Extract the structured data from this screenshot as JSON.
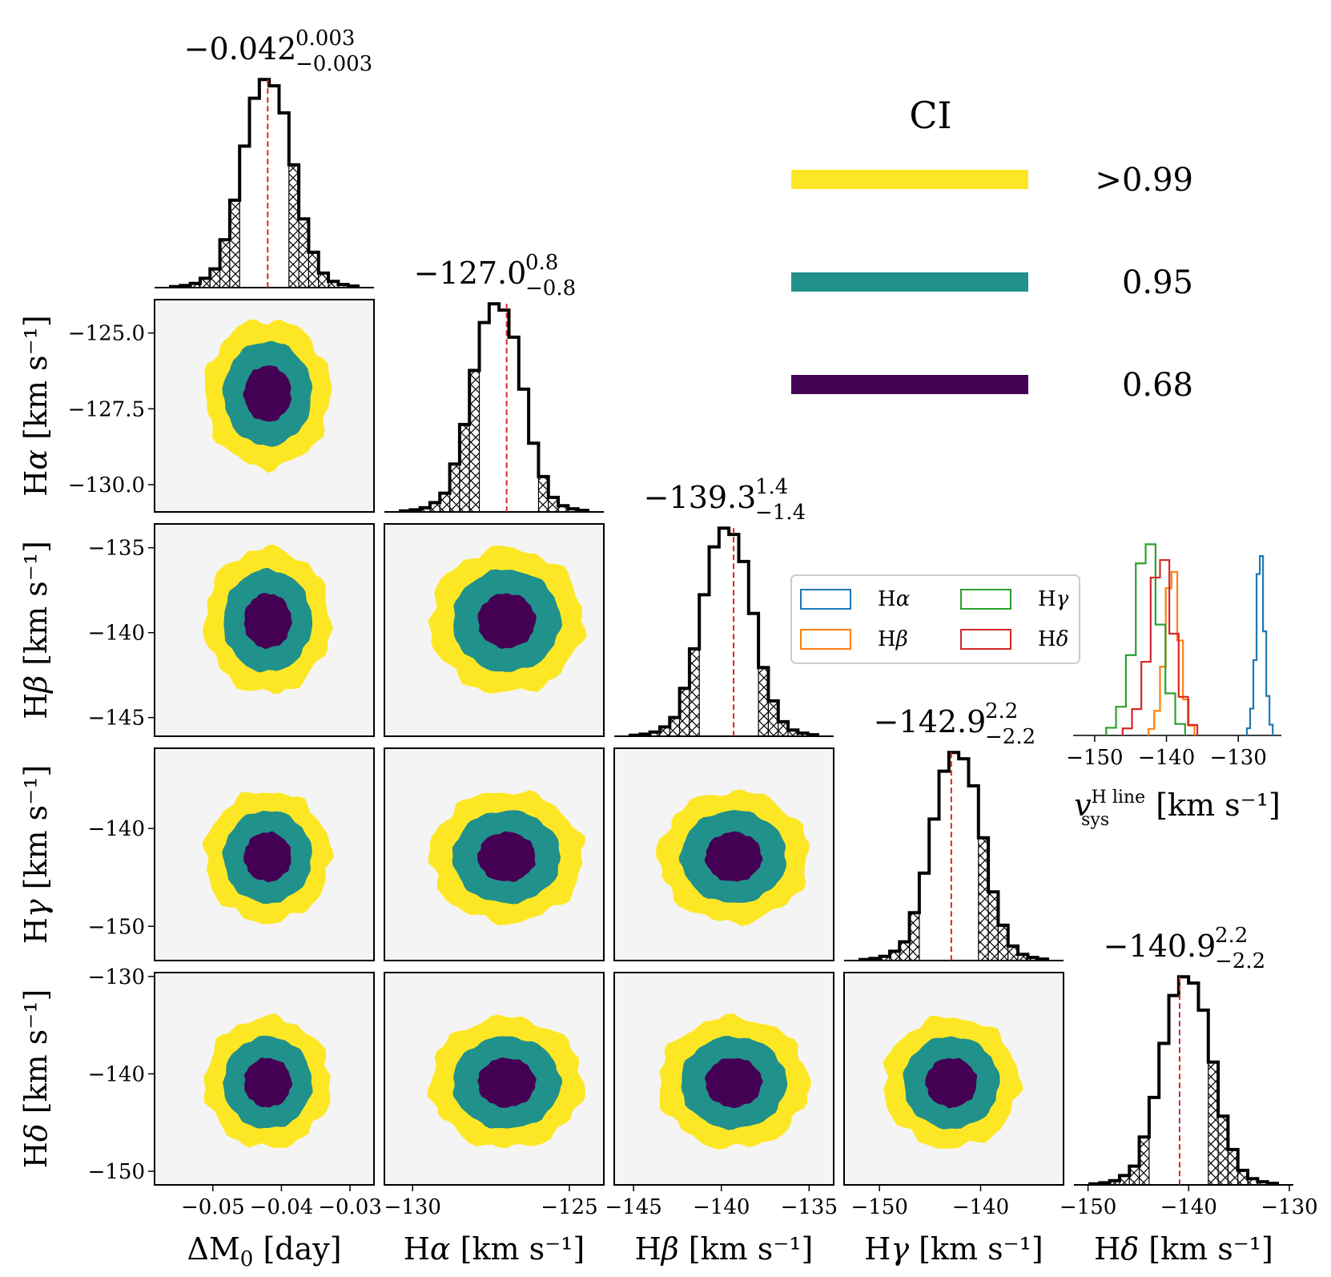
{
  "chart_data": {
    "type": "corner",
    "parameters": [
      {
        "id": "dM0",
        "label_main": "ΔM",
        "label_sub": "0",
        "label_unit": "[day]",
        "median": -0.042,
        "err_plus": 0.003,
        "err_minus": 0.003,
        "range": [
          -0.0585,
          -0.0265
        ],
        "ticks": [
          "−0.05",
          "−0.04",
          "−0.03"
        ],
        "tick_values": [
          -0.05,
          -0.04,
          -0.03
        ]
      },
      {
        "id": "Ha",
        "label_main": "H",
        "label_greek": "α",
        "label_unit": "[km s⁻¹]",
        "median": -127.0,
        "err_plus": 0.8,
        "err_minus": 0.8,
        "range": [
          -130.9,
          -123.9
        ],
        "ticks": [
          "−130",
          "−125"
        ],
        "tick_values": [
          -130,
          -125
        ],
        "y_ticks": [
          "−125.0",
          "−127.5",
          "−130.0"
        ],
        "y_tick_values": [
          -125.0,
          -127.5,
          -130.0
        ]
      },
      {
        "id": "Hb",
        "label_main": "H",
        "label_greek": "β",
        "label_unit": "[km s⁻¹]",
        "median": -139.3,
        "err_plus": 1.4,
        "err_minus": 1.4,
        "range": [
          -146.1,
          -133.6
        ],
        "ticks": [
          "−145",
          "−140",
          "−135"
        ],
        "tick_values": [
          -145,
          -140,
          -135
        ],
        "y_ticks": [
          "−135",
          "−140",
          "−145"
        ],
        "y_tick_values": [
          -135,
          -140,
          -145
        ]
      },
      {
        "id": "Hg",
        "label_main": "H",
        "label_greek": "γ",
        "label_unit": "[km s⁻¹]",
        "median": -142.9,
        "err_plus": 2.2,
        "err_minus": 2.2,
        "range": [
          -153.5,
          -131.8
        ],
        "ticks": [
          "−150",
          "−140"
        ],
        "tick_values": [
          -150,
          -140
        ],
        "y_ticks": [
          "−140",
          "−150"
        ],
        "y_tick_values": [
          -140,
          -150
        ]
      },
      {
        "id": "Hd",
        "label_main": "H",
        "label_greek": "δ",
        "label_unit": "[km s⁻¹]",
        "median": -140.9,
        "err_plus": 2.2,
        "err_minus": 2.2,
        "range": [
          -151.4,
          -129.6
        ],
        "ticks": [
          "−150",
          "−140",
          "−130"
        ],
        "tick_values": [
          -150,
          -140,
          -130
        ],
        "y_ticks": [
          "−130",
          "−140",
          "−150"
        ],
        "y_tick_values": [
          -130,
          -140,
          -150
        ]
      }
    ],
    "histogram_fractions": [
      0.005,
      0.01,
      0.02,
      0.045,
      0.09,
      0.23,
      0.42,
      0.68,
      0.91,
      1.0,
      0.97,
      0.84,
      0.59,
      0.33,
      0.17,
      0.07,
      0.03,
      0.015,
      0.007
    ],
    "histogram_bins": 19,
    "contour_levels": [
      ">0.99",
      "0.95",
      "0.68"
    ],
    "contour_colors": [
      "#fde725",
      "#21918c",
      "#440154"
    ],
    "contour_background": "#f4f4f4",
    "median_line_color": "#d62728",
    "ci_legend": {
      "title": "CI",
      "entries": [
        {
          "label": ">0.99",
          "color": "#fde725"
        },
        {
          "label": "0.95",
          "color": "#21918c"
        },
        {
          "label": "0.68",
          "color": "#440154"
        }
      ]
    },
    "inset": {
      "type": "histogram-step",
      "xlabel_main": "v",
      "xlabel_sup": "H line",
      "xlabel_sub": "sys",
      "xlabel_unit": "[km s⁻¹]",
      "xticks": [
        "−150",
        "−140",
        "−130"
      ],
      "xtick_values": [
        -150,
        -140,
        -130
      ],
      "xlim": [
        -153,
        -124
      ],
      "series": [
        {
          "name": "Hα",
          "color": "#1f77b4",
          "median": -127.0,
          "halfwidth": 1.8
        },
        {
          "name": "Hβ",
          "color": "#ff7f0e",
          "median": -139.3,
          "halfwidth": 3.2
        },
        {
          "name": "Hγ",
          "color": "#2ca02c",
          "median": -142.9,
          "halfwidth": 5.5
        },
        {
          "name": "Hδ",
          "color": "#d62728",
          "median": -140.9,
          "halfwidth": 5.2
        }
      ]
    }
  }
}
